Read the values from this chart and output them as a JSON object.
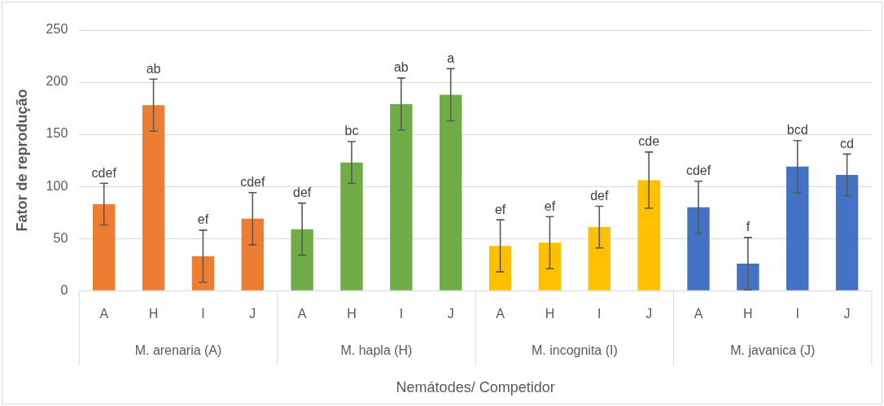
{
  "chart_data": {
    "type": "bar",
    "xlabel": "Nemátodes/ Competidor",
    "ylabel": "Fator de reprodução",
    "categories": [
      "A",
      "H",
      "I",
      "J",
      "A",
      "H",
      "I",
      "J",
      "A",
      "H",
      "I",
      "J",
      "A",
      "H",
      "I",
      "J"
    ],
    "values": [
      83,
      178,
      33,
      69,
      59,
      123,
      179,
      188,
      43,
      46,
      61,
      106,
      80,
      26,
      119,
      111
    ],
    "errors": [
      20,
      25,
      25,
      25,
      25,
      20,
      25,
      25,
      25,
      25,
      20,
      27,
      25,
      25,
      25,
      20
    ],
    "colors": [
      "#ed7d31",
      "#ed7d31",
      "#ed7d31",
      "#ed7d31",
      "#70ad47",
      "#70ad47",
      "#70ad47",
      "#70ad47",
      "#ffc000",
      "#ffc000",
      "#ffc000",
      "#ffc000",
      "#4472c4",
      "#4472c4",
      "#4472c4",
      "#4472c4"
    ],
    "value_labels": [
      "cdef",
      "ab",
      "ef",
      "cdef",
      "def",
      "bc",
      "ab",
      "a",
      "ef",
      "ef",
      "def",
      "cde",
      "cdef",
      "f",
      "bcd",
      "cd"
    ],
    "annotations": [
      "M. arenaria (A)",
      "M. hapla (H)",
      "M. incognita (I)",
      "M. javanica (J)"
    ],
    "ylim": [
      0,
      250
    ],
    "yticks": [
      0,
      50,
      100,
      150,
      200,
      250
    ],
    "grid": "y",
    "legend": false
  }
}
